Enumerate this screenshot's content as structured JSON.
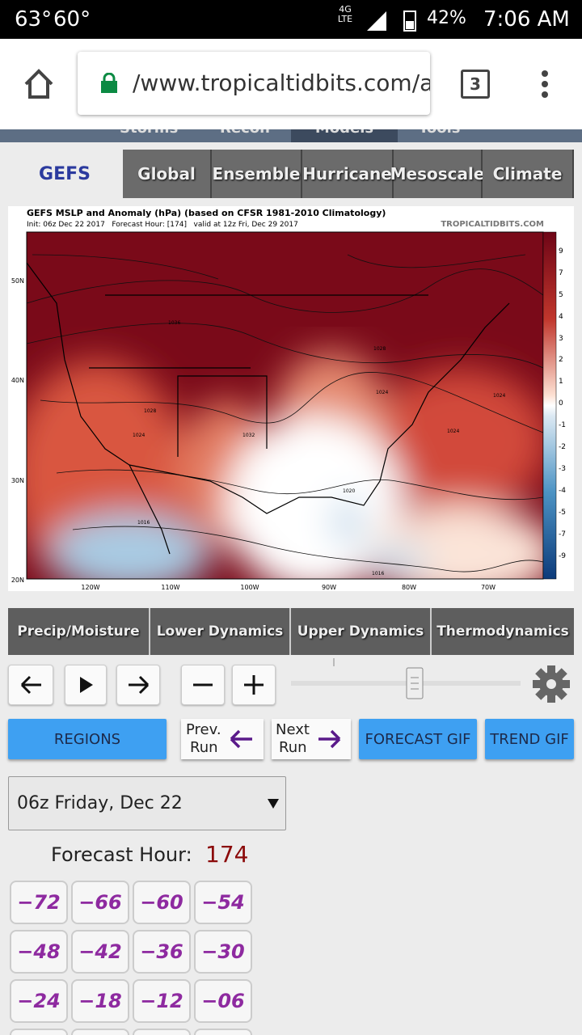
{
  "status_bar": {
    "temp_1": "63°",
    "temp_2": "60°",
    "network": "4G LTE",
    "battery": "42%",
    "time": "7:06 AM"
  },
  "browser": {
    "url": "/www.tropicaltidbits.com/a",
    "tab_count": "3"
  },
  "site_nav": [
    "Storms",
    "Recon",
    "Models",
    "Tools"
  ],
  "model_tabs": {
    "active": "GEFS",
    "others": [
      "Global",
      "Ensemble",
      "Hurricane",
      "Mesoscale",
      "Climate"
    ]
  },
  "map": {
    "title": "GEFS MSLP and Anomaly (hPa) (based on CFSR 1981-2010 Climatology)",
    "subtitle": "Init: 06z Dec 22 2017   Forecast Hour: [174]   valid at 12z Fri, Dec 29 2017",
    "credit": "TROPICALTIDBITS.COM",
    "colorbar_labels": [
      "9",
      "7",
      "5",
      "4",
      "3",
      "2",
      "1",
      "0",
      "-1",
      "-2",
      "-3",
      "-4",
      "-5",
      "-7",
      "-9"
    ],
    "lat_labels": [
      "50N",
      "40N",
      "30N",
      "20N"
    ],
    "lon_labels": [
      "120W",
      "110W",
      "100W",
      "90W",
      "80W",
      "70W"
    ],
    "isobar_labels": [
      "1036",
      "1028",
      "1024",
      "1028",
      "1024",
      "1024",
      "1024",
      "1020",
      "1016",
      "1016",
      "1032"
    ]
  },
  "categories": [
    "Precip/Moisture",
    "Lower Dynamics",
    "Upper Dynamics",
    "Thermodynamics"
  ],
  "buttons": {
    "regions": "REGIONS",
    "prev_run": [
      "Prev.",
      "Run"
    ],
    "next_run": [
      "Next",
      "Run"
    ],
    "forecast_gif": "FORECAST GIF",
    "trend_gif": "TREND GIF"
  },
  "run_select": "06z Friday, Dec 22",
  "forecast_hour": {
    "label": "Forecast Hour:",
    "value": "174"
  },
  "hour_buttons": [
    "−72",
    "−66",
    "−60",
    "−54",
    "−48",
    "−42",
    "−36",
    "−30",
    "−24",
    "−18",
    "−12",
    "−06"
  ]
}
